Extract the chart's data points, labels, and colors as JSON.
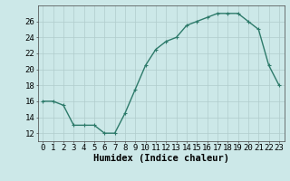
{
  "x": [
    0,
    1,
    2,
    3,
    4,
    5,
    6,
    7,
    8,
    9,
    10,
    11,
    12,
    13,
    14,
    15,
    16,
    17,
    18,
    19,
    20,
    21,
    22,
    23
  ],
  "y": [
    16,
    16,
    15.5,
    13,
    13,
    13,
    12,
    12,
    14.5,
    17.5,
    20.5,
    22.5,
    23.5,
    24,
    25.5,
    26,
    26.5,
    27,
    27,
    27,
    26,
    25,
    20.5,
    18
  ],
  "line_color": "#2d7a6a",
  "marker_color": "#2d7a6a",
  "bg_color": "#cce8e8",
  "grid_color": "#b0cccc",
  "xlabel": "Humidex (Indice chaleur)",
  "xlim": [
    -0.5,
    23.5
  ],
  "ylim": [
    11,
    28
  ],
  "yticks": [
    12,
    14,
    16,
    18,
    20,
    22,
    24,
    26
  ],
  "xlabel_fontsize": 7.5,
  "tick_fontsize": 6.5,
  "linewidth": 1.0,
  "markersize": 2.5
}
